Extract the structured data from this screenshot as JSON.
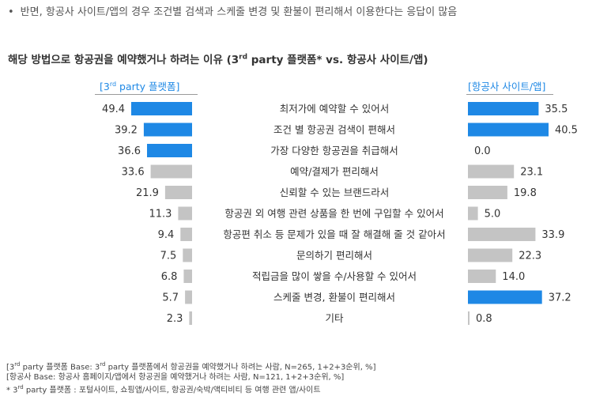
{
  "header": {
    "bullet": "•",
    "text": "반면, 항공사 사이트/앱의 경우 조건별 검색과 스케줄 변경 및 환불이 편리해서 이용한다는 응답이 많음"
  },
  "chart_title": {
    "before_sup": "해당 방법으로 항공권을 예약했거나 하려는 이유 (3",
    "sup": "rd",
    "after_sup": " party 플랫폼* vs. 항공사 사이트/앱)"
  },
  "legend": {
    "left_before_sup": "[3",
    "left_sup": "rd",
    "left_after_sup": " party 플랫폼]",
    "right": "[항공사 사이트/앱]"
  },
  "colors": {
    "highlight": "#1e88e5",
    "normal": "#c4c4c4",
    "text": "#333333"
  },
  "chart_data": {
    "type": "bar",
    "categories": [
      "최저가에 예약할 수 있어서",
      "조건 별 항공권 검색이 편해서",
      "가장 다양한 항공권을 취급해서",
      "예약/결제가 편리해서",
      "신뢰할 수 있는 브랜드라서",
      "항공권 외 여행 관련 상품을 한 번에 구입할 수 있어서",
      "항공편 취소 등 문제가 있을 때 잘 해결해 줄 것 같아서",
      "문의하기 편리해서",
      "적립금을 많이 쌓을 수/사용할 수 있어서",
      "스케줄 변경, 환불이 편리해서",
      "기타"
    ],
    "series": [
      {
        "name": "3rd party 플랫폼",
        "values": [
          49.4,
          39.2,
          36.6,
          33.6,
          21.9,
          11.3,
          9.4,
          7.5,
          6.8,
          5.7,
          2.3
        ],
        "highlighted": [
          true,
          true,
          true,
          false,
          false,
          false,
          false,
          false,
          false,
          false,
          false
        ]
      },
      {
        "name": "항공사 사이트/앱",
        "values": [
          35.5,
          40.5,
          0.0,
          23.1,
          19.8,
          5.0,
          33.9,
          22.3,
          14.0,
          37.2,
          0.8
        ],
        "highlighted": [
          true,
          true,
          false,
          false,
          false,
          false,
          false,
          false,
          false,
          true,
          false
        ]
      }
    ],
    "value_format": "one-decimal",
    "grid": false
  },
  "notes": {
    "line1_before_sup": "[3",
    "line1_sup": "rd",
    "line1_mid1": " party 플랫폼 Base: 3",
    "line1_sup2": "rd",
    "line1_after": " party 플랫폼에서 항공권을 예약했거나 하려는 사람, N=265, 1+2+3순위, %]",
    "line2": "[항공사 Base: 항공사 홈페이지/앱에서 항공권을 예약했거나 하려는 사람, N=121, 1+2+3순위, %]",
    "line3_before_sup": "* 3",
    "line3_sup": "rd",
    "line3_after": " party 플랫폼 : 포털사이트, 쇼핑앱/사이트, 항공권/숙박/액티비티 등 여행 관련 앱/사이트"
  }
}
